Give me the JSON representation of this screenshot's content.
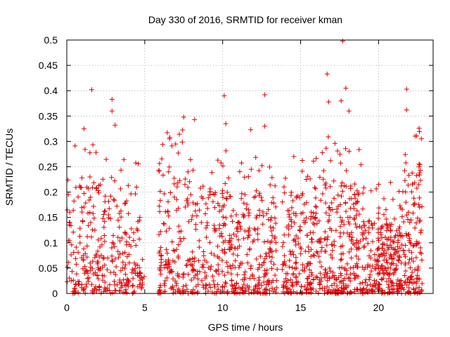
{
  "chart_data": {
    "type": "scatter",
    "title": "Day 330 of 2016, SRMTID for receiver kman",
    "xlabel": "GPS time / hours",
    "ylabel": "SRMTID / TECUs",
    "xlim": [
      0,
      23.5
    ],
    "ylim": [
      0,
      0.5
    ],
    "xticks": [
      0,
      5,
      10,
      15,
      20
    ],
    "yticks": [
      0,
      0.05,
      0.1,
      0.15,
      0.2,
      0.25,
      0.3,
      0.35,
      0.4,
      0.45,
      0.5
    ],
    "xtick_labels": [
      "0",
      "5",
      "10",
      "15",
      "20"
    ],
    "ytick_labels": [
      "0",
      "0.05",
      "0.1",
      "0.15",
      "0.2",
      "0.25",
      "0.3",
      "0.35",
      "0.4",
      "0.45",
      "0.5"
    ],
    "grid": true,
    "marker": "+",
    "color": "#e00000",
    "series": [
      {
        "name": "SRMTID",
        "notable_points": [
          {
            "x": 1.6,
            "y": 0.402
          },
          {
            "x": 2.9,
            "y": 0.383
          },
          {
            "x": 2.9,
            "y": 0.36
          },
          {
            "x": 3.1,
            "y": 0.332
          },
          {
            "x": 1.1,
            "y": 0.325
          },
          {
            "x": 7.5,
            "y": 0.348
          },
          {
            "x": 8.2,
            "y": 0.343
          },
          {
            "x": 10.1,
            "y": 0.39
          },
          {
            "x": 10.2,
            "y": 0.335
          },
          {
            "x": 11.8,
            "y": 0.323
          },
          {
            "x": 12.7,
            "y": 0.392
          },
          {
            "x": 12.7,
            "y": 0.33
          },
          {
            "x": 16.7,
            "y": 0.433
          },
          {
            "x": 16.8,
            "y": 0.378
          },
          {
            "x": 17.7,
            "y": 0.498
          },
          {
            "x": 17.9,
            "y": 0.405
          },
          {
            "x": 17.6,
            "y": 0.38
          },
          {
            "x": 18.1,
            "y": 0.36
          },
          {
            "x": 21.8,
            "y": 0.403
          },
          {
            "x": 21.8,
            "y": 0.362
          },
          {
            "x": 22.6,
            "y": 0.326
          }
        ],
        "segments": [
          {
            "x_start": 0.0,
            "x_end": 2.2,
            "density": 150,
            "typical_max": 0.22
          },
          {
            "x_start": 2.2,
            "x_end": 4.7,
            "density": 160,
            "typical_max": 0.2
          },
          {
            "x_start": 4.7,
            "x_end": 5.0,
            "density": 12,
            "typical_max": 0.12
          },
          {
            "x_start": 5.8,
            "x_end": 6.0,
            "density": 4,
            "typical_max": 0.01
          },
          {
            "x_start": 5.9,
            "x_end": 8.0,
            "density": 150,
            "typical_max": 0.25
          },
          {
            "x_start": 8.0,
            "x_end": 10.5,
            "density": 170,
            "typical_max": 0.22
          },
          {
            "x_start": 10.5,
            "x_end": 12.0,
            "density": 110,
            "typical_max": 0.18
          },
          {
            "x_start": 12.0,
            "x_end": 13.5,
            "density": 120,
            "typical_max": 0.2
          },
          {
            "x_start": 13.8,
            "x_end": 15.5,
            "density": 140,
            "typical_max": 0.2
          },
          {
            "x_start": 15.5,
            "x_end": 17.5,
            "density": 170,
            "typical_max": 0.23
          },
          {
            "x_start": 17.5,
            "x_end": 19.0,
            "density": 150,
            "typical_max": 0.22
          },
          {
            "x_start": 19.0,
            "x_end": 20.5,
            "density": 140,
            "typical_max": 0.15
          },
          {
            "x_start": 20.5,
            "x_end": 21.4,
            "density": 110,
            "typical_max": 0.14
          },
          {
            "x_start": 21.4,
            "x_end": 22.8,
            "density": 150,
            "typical_max": 0.25
          }
        ]
      }
    ]
  }
}
